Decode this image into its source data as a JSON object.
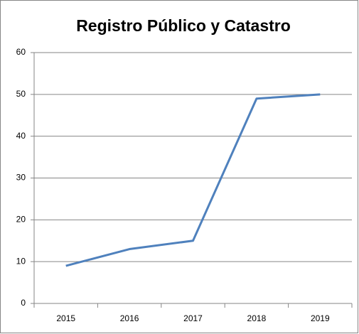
{
  "chart_data": {
    "type": "line",
    "title": "Registro Público y Catastro",
    "categories": [
      "2015",
      "2016",
      "2017",
      "2018",
      "2019"
    ],
    "values": [
      9,
      13,
      15,
      49,
      50
    ],
    "color": "#4f81bd",
    "ylim": [
      0,
      60
    ],
    "yticks": [
      0,
      10,
      20,
      30,
      40,
      50,
      60
    ],
    "grid": true
  }
}
